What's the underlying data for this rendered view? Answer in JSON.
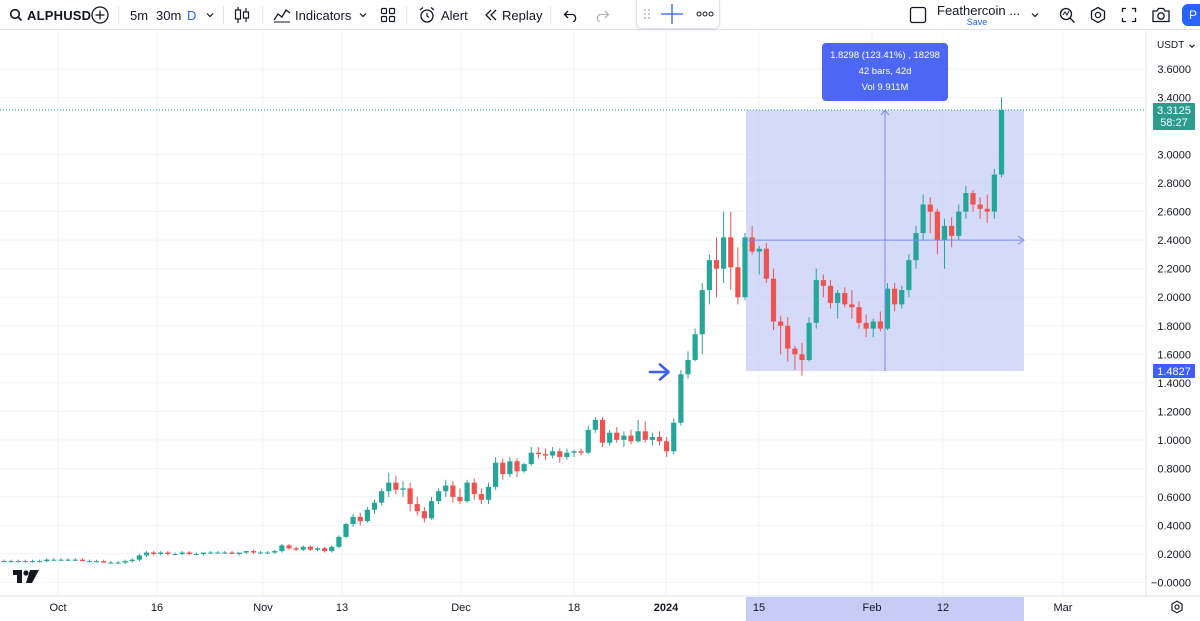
{
  "toolbar": {
    "symbol": "ALPHUSD",
    "intervals": [
      "5m",
      "30m",
      "D"
    ],
    "indicators_label": "Indicators",
    "alert_label": "Alert",
    "replay_label": "Replay",
    "layout_name": "Feathercoin ...",
    "save_label": "Save",
    "publish_label": "P"
  },
  "price_axis": {
    "currency": "USDT",
    "ticks": [
      "3.6000",
      "3.4000",
      "3.0000",
      "2.8000",
      "2.6000",
      "2.4000",
      "2.2000",
      "2.0000",
      "1.8000",
      "1.6000",
      "1.4000",
      "1.2000",
      "1.0000",
      "0.8000",
      "0.6000",
      "0.4000",
      "0.2000",
      "−0.0000"
    ],
    "last_price": "3.3125",
    "countdown": "58:27",
    "range_low_label": "1.4827"
  },
  "time_axis": {
    "ticks": [
      "Oct",
      "16",
      "Nov",
      "13",
      "Dec",
      "18",
      "2024",
      "15",
      "Feb",
      "12",
      "Mar"
    ]
  },
  "measure_tooltip": {
    "line1": "1.8298 (123.41%) , 18298",
    "line2": "42 bars, 42d",
    "line3": "Vol 9.911M"
  },
  "colors": {
    "up": "#26a69a",
    "down": "#ef5350",
    "measure_fill": "#c5cdf6",
    "measure_stroke": "#7b8bf1",
    "tooltip_bg": "#4d66f4",
    "last_price_bg": "#2a9d8f"
  },
  "chart_data": {
    "type": "candlestick",
    "symbol": "ALPHUSD",
    "interval": "1D",
    "ylim": [
      -0.05,
      3.7
    ],
    "candles": [
      {
        "o": 0.15,
        "h": 0.16,
        "l": 0.14,
        "c": 0.15
      },
      {
        "o": 0.15,
        "h": 0.16,
        "l": 0.14,
        "c": 0.15
      },
      {
        "o": 0.15,
        "h": 0.16,
        "l": 0.14,
        "c": 0.15
      },
      {
        "o": 0.15,
        "h": 0.16,
        "l": 0.14,
        "c": 0.15
      },
      {
        "o": 0.15,
        "h": 0.16,
        "l": 0.14,
        "c": 0.15
      },
      {
        "o": 0.15,
        "h": 0.16,
        "l": 0.14,
        "c": 0.15
      },
      {
        "o": 0.15,
        "h": 0.17,
        "l": 0.14,
        "c": 0.16
      },
      {
        "o": 0.16,
        "h": 0.17,
        "l": 0.15,
        "c": 0.16
      },
      {
        "o": 0.16,
        "h": 0.17,
        "l": 0.15,
        "c": 0.16
      },
      {
        "o": 0.16,
        "h": 0.17,
        "l": 0.15,
        "c": 0.16
      },
      {
        "o": 0.16,
        "h": 0.17,
        "l": 0.15,
        "c": 0.16
      },
      {
        "o": 0.16,
        "h": 0.17,
        "l": 0.15,
        "c": 0.15
      },
      {
        "o": 0.15,
        "h": 0.16,
        "l": 0.14,
        "c": 0.15
      },
      {
        "o": 0.15,
        "h": 0.16,
        "l": 0.14,
        "c": 0.15
      },
      {
        "o": 0.15,
        "h": 0.16,
        "l": 0.14,
        "c": 0.14
      },
      {
        "o": 0.14,
        "h": 0.15,
        "l": 0.13,
        "c": 0.14
      },
      {
        "o": 0.14,
        "h": 0.15,
        "l": 0.13,
        "c": 0.14
      },
      {
        "o": 0.14,
        "h": 0.16,
        "l": 0.13,
        "c": 0.15
      },
      {
        "o": 0.15,
        "h": 0.17,
        "l": 0.14,
        "c": 0.16
      },
      {
        "o": 0.16,
        "h": 0.2,
        "l": 0.15,
        "c": 0.19
      },
      {
        "o": 0.19,
        "h": 0.22,
        "l": 0.18,
        "c": 0.21
      },
      {
        "o": 0.21,
        "h": 0.22,
        "l": 0.19,
        "c": 0.2
      },
      {
        "o": 0.2,
        "h": 0.22,
        "l": 0.19,
        "c": 0.21
      },
      {
        "o": 0.21,
        "h": 0.22,
        "l": 0.19,
        "c": 0.2
      },
      {
        "o": 0.2,
        "h": 0.21,
        "l": 0.19,
        "c": 0.2
      },
      {
        "o": 0.2,
        "h": 0.22,
        "l": 0.19,
        "c": 0.21
      },
      {
        "o": 0.21,
        "h": 0.22,
        "l": 0.19,
        "c": 0.2
      },
      {
        "o": 0.2,
        "h": 0.21,
        "l": 0.19,
        "c": 0.2
      },
      {
        "o": 0.2,
        "h": 0.21,
        "l": 0.19,
        "c": 0.21
      },
      {
        "o": 0.21,
        "h": 0.22,
        "l": 0.2,
        "c": 0.21
      },
      {
        "o": 0.21,
        "h": 0.22,
        "l": 0.2,
        "c": 0.21
      },
      {
        "o": 0.21,
        "h": 0.22,
        "l": 0.2,
        "c": 0.21
      },
      {
        "o": 0.21,
        "h": 0.22,
        "l": 0.2,
        "c": 0.2
      },
      {
        "o": 0.2,
        "h": 0.21,
        "l": 0.19,
        "c": 0.21
      },
      {
        "o": 0.21,
        "h": 0.22,
        "l": 0.2,
        "c": 0.22
      },
      {
        "o": 0.22,
        "h": 0.23,
        "l": 0.2,
        "c": 0.21
      },
      {
        "o": 0.21,
        "h": 0.22,
        "l": 0.2,
        "c": 0.21
      },
      {
        "o": 0.21,
        "h": 0.22,
        "l": 0.2,
        "c": 0.21
      },
      {
        "o": 0.21,
        "h": 0.23,
        "l": 0.2,
        "c": 0.22
      },
      {
        "o": 0.22,
        "h": 0.27,
        "l": 0.21,
        "c": 0.26
      },
      {
        "o": 0.26,
        "h": 0.27,
        "l": 0.23,
        "c": 0.24
      },
      {
        "o": 0.24,
        "h": 0.25,
        "l": 0.22,
        "c": 0.23
      },
      {
        "o": 0.23,
        "h": 0.26,
        "l": 0.22,
        "c": 0.25
      },
      {
        "o": 0.25,
        "h": 0.26,
        "l": 0.22,
        "c": 0.23
      },
      {
        "o": 0.23,
        "h": 0.25,
        "l": 0.22,
        "c": 0.24
      },
      {
        "o": 0.24,
        "h": 0.25,
        "l": 0.21,
        "c": 0.22
      },
      {
        "o": 0.22,
        "h": 0.26,
        "l": 0.21,
        "c": 0.25
      },
      {
        "o": 0.25,
        "h": 0.33,
        "l": 0.24,
        "c": 0.32
      },
      {
        "o": 0.32,
        "h": 0.42,
        "l": 0.31,
        "c": 0.41
      },
      {
        "o": 0.41,
        "h": 0.48,
        "l": 0.39,
        "c": 0.46
      },
      {
        "o": 0.46,
        "h": 0.49,
        "l": 0.4,
        "c": 0.43
      },
      {
        "o": 0.43,
        "h": 0.53,
        "l": 0.42,
        "c": 0.51
      },
      {
        "o": 0.51,
        "h": 0.58,
        "l": 0.48,
        "c": 0.56
      },
      {
        "o": 0.56,
        "h": 0.66,
        "l": 0.54,
        "c": 0.64
      },
      {
        "o": 0.64,
        "h": 0.77,
        "l": 0.6,
        "c": 0.7
      },
      {
        "o": 0.7,
        "h": 0.75,
        "l": 0.62,
        "c": 0.65
      },
      {
        "o": 0.65,
        "h": 0.71,
        "l": 0.6,
        "c": 0.66
      },
      {
        "o": 0.66,
        "h": 0.7,
        "l": 0.5,
        "c": 0.55
      },
      {
        "o": 0.55,
        "h": 0.6,
        "l": 0.47,
        "c": 0.5
      },
      {
        "o": 0.5,
        "h": 0.53,
        "l": 0.42,
        "c": 0.45
      },
      {
        "o": 0.45,
        "h": 0.6,
        "l": 0.44,
        "c": 0.57
      },
      {
        "o": 0.57,
        "h": 0.66,
        "l": 0.55,
        "c": 0.64
      },
      {
        "o": 0.64,
        "h": 0.72,
        "l": 0.6,
        "c": 0.68
      },
      {
        "o": 0.68,
        "h": 0.71,
        "l": 0.56,
        "c": 0.6
      },
      {
        "o": 0.6,
        "h": 0.66,
        "l": 0.55,
        "c": 0.57
      },
      {
        "o": 0.57,
        "h": 0.72,
        "l": 0.56,
        "c": 0.7
      },
      {
        "o": 0.7,
        "h": 0.73,
        "l": 0.58,
        "c": 0.62
      },
      {
        "o": 0.62,
        "h": 0.66,
        "l": 0.55,
        "c": 0.58
      },
      {
        "o": 0.58,
        "h": 0.7,
        "l": 0.55,
        "c": 0.67
      },
      {
        "o": 0.67,
        "h": 0.88,
        "l": 0.65,
        "c": 0.84
      },
      {
        "o": 0.84,
        "h": 0.87,
        "l": 0.72,
        "c": 0.76
      },
      {
        "o": 0.76,
        "h": 0.88,
        "l": 0.74,
        "c": 0.85
      },
      {
        "o": 0.85,
        "h": 0.87,
        "l": 0.74,
        "c": 0.78
      },
      {
        "o": 0.78,
        "h": 0.84,
        "l": 0.77,
        "c": 0.83
      },
      {
        "o": 0.83,
        "h": 0.95,
        "l": 0.82,
        "c": 0.91
      },
      {
        "o": 0.91,
        "h": 0.95,
        "l": 0.87,
        "c": 0.9
      },
      {
        "o": 0.9,
        "h": 0.94,
        "l": 0.86,
        "c": 0.89
      },
      {
        "o": 0.89,
        "h": 0.95,
        "l": 0.87,
        "c": 0.92
      },
      {
        "o": 0.92,
        "h": 0.94,
        "l": 0.84,
        "c": 0.88
      },
      {
        "o": 0.88,
        "h": 0.94,
        "l": 0.86,
        "c": 0.91
      },
      {
        "o": 0.91,
        "h": 0.93,
        "l": 0.88,
        "c": 0.92
      },
      {
        "o": 0.92,
        "h": 0.94,
        "l": 0.89,
        "c": 0.91
      },
      {
        "o": 0.91,
        "h": 1.1,
        "l": 0.9,
        "c": 1.07
      },
      {
        "o": 1.07,
        "h": 1.16,
        "l": 1.05,
        "c": 1.14
      },
      {
        "o": 1.14,
        "h": 1.16,
        "l": 0.95,
        "c": 0.98
      },
      {
        "o": 0.98,
        "h": 1.07,
        "l": 0.96,
        "c": 1.05
      },
      {
        "o": 1.05,
        "h": 1.09,
        "l": 0.98,
        "c": 1.0
      },
      {
        "o": 1.0,
        "h": 1.06,
        "l": 0.95,
        "c": 1.03
      },
      {
        "o": 1.03,
        "h": 1.07,
        "l": 0.97,
        "c": 0.99
      },
      {
        "o": 0.99,
        "h": 1.14,
        "l": 0.98,
        "c": 1.06
      },
      {
        "o": 1.06,
        "h": 1.13,
        "l": 0.98,
        "c": 1.0
      },
      {
        "o": 1.0,
        "h": 1.05,
        "l": 0.96,
        "c": 1.02
      },
      {
        "o": 1.02,
        "h": 1.06,
        "l": 0.96,
        "c": 0.99
      },
      {
        "o": 0.99,
        "h": 1.02,
        "l": 0.88,
        "c": 0.92
      },
      {
        "o": 0.92,
        "h": 1.15,
        "l": 0.9,
        "c": 1.12
      },
      {
        "o": 1.12,
        "h": 1.49,
        "l": 1.1,
        "c": 1.46
      },
      {
        "o": 1.46,
        "h": 1.62,
        "l": 1.43,
        "c": 1.56
      },
      {
        "o": 1.56,
        "h": 1.78,
        "l": 1.55,
        "c": 1.74
      },
      {
        "o": 1.74,
        "h": 2.1,
        "l": 1.6,
        "c": 2.05
      },
      {
        "o": 2.05,
        "h": 2.3,
        "l": 1.95,
        "c": 2.26
      },
      {
        "o": 2.26,
        "h": 2.42,
        "l": 2.0,
        "c": 2.2
      },
      {
        "o": 2.2,
        "h": 2.6,
        "l": 2.1,
        "c": 2.42
      },
      {
        "o": 2.42,
        "h": 2.6,
        "l": 2.05,
        "c": 2.21
      },
      {
        "o": 2.21,
        "h": 2.35,
        "l": 1.95,
        "c": 2.0
      },
      {
        "o": 2.0,
        "h": 2.45,
        "l": 1.98,
        "c": 2.42
      },
      {
        "o": 2.42,
        "h": 2.5,
        "l": 2.3,
        "c": 2.32
      },
      {
        "o": 2.32,
        "h": 2.36,
        "l": 2.16,
        "c": 2.34
      },
      {
        "o": 2.34,
        "h": 2.38,
        "l": 2.1,
        "c": 2.13
      },
      {
        "o": 2.13,
        "h": 2.2,
        "l": 1.77,
        "c": 1.83
      },
      {
        "o": 1.83,
        "h": 1.87,
        "l": 1.6,
        "c": 1.8
      },
      {
        "o": 1.8,
        "h": 1.86,
        "l": 1.55,
        "c": 1.64
      },
      {
        "o": 1.64,
        "h": 1.66,
        "l": 1.49,
        "c": 1.6
      },
      {
        "o": 1.6,
        "h": 1.68,
        "l": 1.45,
        "c": 1.56
      },
      {
        "o": 1.56,
        "h": 1.86,
        "l": 1.55,
        "c": 1.82
      },
      {
        "o": 1.82,
        "h": 2.2,
        "l": 1.78,
        "c": 2.12
      },
      {
        "o": 2.12,
        "h": 2.16,
        "l": 2.0,
        "c": 2.08
      },
      {
        "o": 2.08,
        "h": 2.12,
        "l": 1.92,
        "c": 1.96
      },
      {
        "o": 1.96,
        "h": 2.05,
        "l": 1.85,
        "c": 2.03
      },
      {
        "o": 2.03,
        "h": 2.07,
        "l": 1.93,
        "c": 1.95
      },
      {
        "o": 1.95,
        "h": 2.05,
        "l": 1.85,
        "c": 1.93
      },
      {
        "o": 1.93,
        "h": 1.97,
        "l": 1.78,
        "c": 1.82
      },
      {
        "o": 1.82,
        "h": 1.88,
        "l": 1.72,
        "c": 1.78
      },
      {
        "o": 1.78,
        "h": 1.85,
        "l": 1.72,
        "c": 1.83
      },
      {
        "o": 1.83,
        "h": 1.9,
        "l": 1.76,
        "c": 1.78
      },
      {
        "o": 1.78,
        "h": 2.1,
        "l": 1.77,
        "c": 2.06
      },
      {
        "o": 2.06,
        "h": 2.1,
        "l": 1.9,
        "c": 1.95
      },
      {
        "o": 1.95,
        "h": 2.08,
        "l": 1.92,
        "c": 2.05
      },
      {
        "o": 2.05,
        "h": 2.3,
        "l": 2.0,
        "c": 2.26
      },
      {
        "o": 2.26,
        "h": 2.5,
        "l": 2.2,
        "c": 2.45
      },
      {
        "o": 2.45,
        "h": 2.72,
        "l": 2.4,
        "c": 2.65
      },
      {
        "o": 2.65,
        "h": 2.7,
        "l": 2.45,
        "c": 2.6
      },
      {
        "o": 2.6,
        "h": 2.62,
        "l": 2.3,
        "c": 2.4
      },
      {
        "o": 2.4,
        "h": 2.55,
        "l": 2.2,
        "c": 2.5
      },
      {
        "o": 2.5,
        "h": 2.56,
        "l": 2.35,
        "c": 2.43
      },
      {
        "o": 2.43,
        "h": 2.65,
        "l": 2.4,
        "c": 2.6
      },
      {
        "o": 2.6,
        "h": 2.78,
        "l": 2.55,
        "c": 2.73
      },
      {
        "o": 2.73,
        "h": 2.75,
        "l": 2.6,
        "c": 2.65
      },
      {
        "o": 2.65,
        "h": 2.7,
        "l": 2.55,
        "c": 2.62
      },
      {
        "o": 2.62,
        "h": 2.72,
        "l": 2.52,
        "c": 2.6
      },
      {
        "o": 2.6,
        "h": 2.9,
        "l": 2.55,
        "c": 2.86
      },
      {
        "o": 2.86,
        "h": 3.4,
        "l": 2.84,
        "c": 3.3125
      }
    ]
  }
}
